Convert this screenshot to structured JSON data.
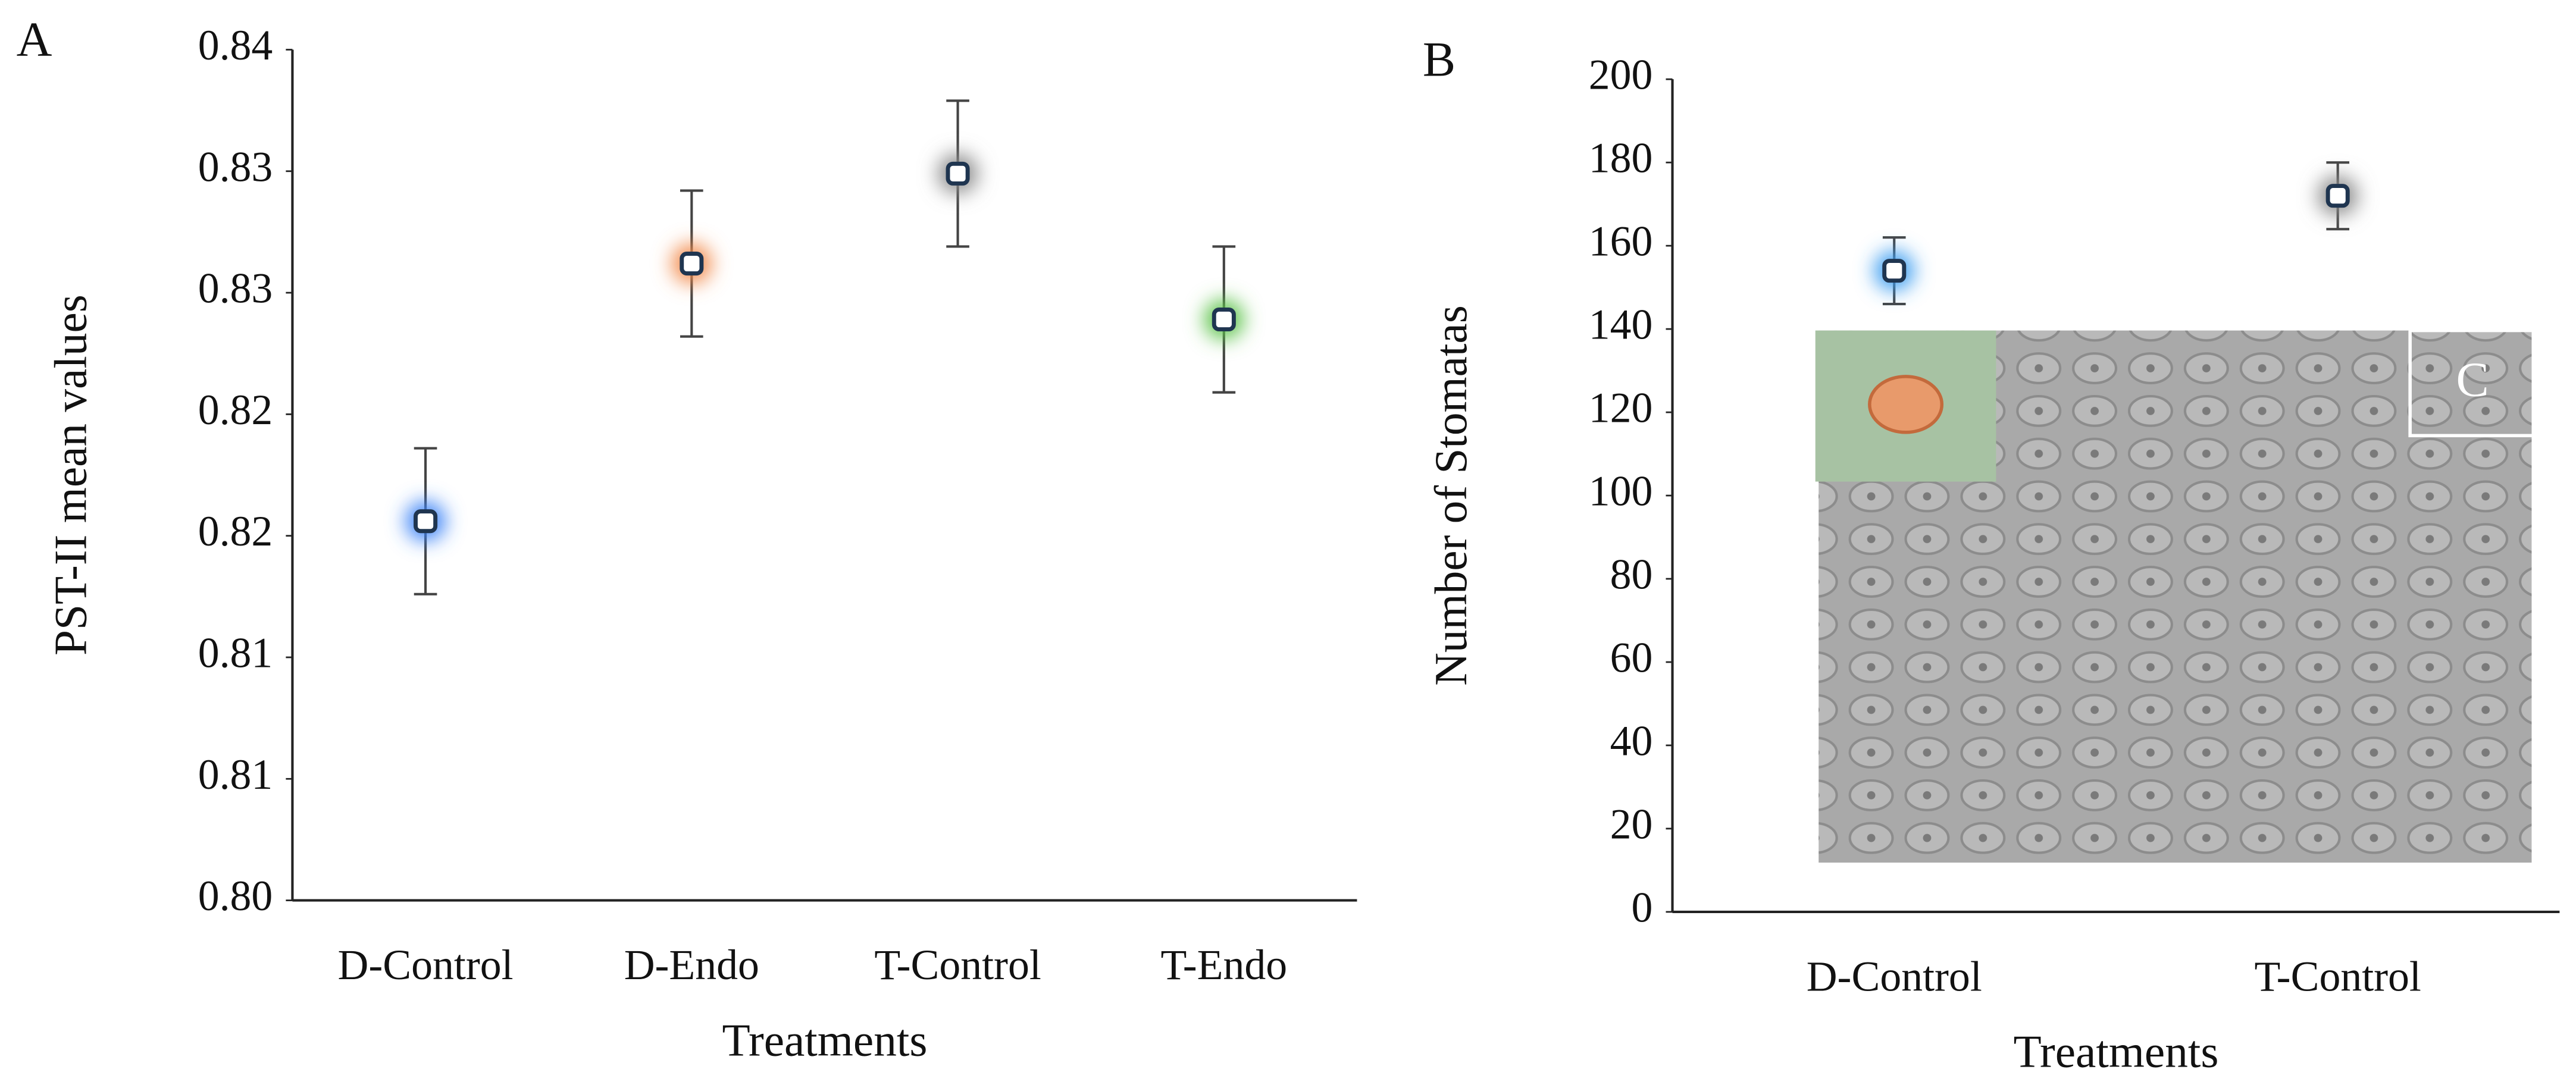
{
  "chart_data": [
    {
      "type": "scatter",
      "label": "A",
      "y_label": "PST-II mean values",
      "x_label": "Treatments",
      "categories": [
        "D-Control",
        "D-Endo",
        "T-Control",
        "T-Endo"
      ],
      "values": [
        0.8206,
        0.8312,
        0.8349,
        0.8289
      ],
      "errors": [
        0.003,
        0.003,
        0.003,
        0.003
      ],
      "colors": [
        "#3b82f6",
        "#f28a4b",
        "#8a8a8a",
        "#5cc24a"
      ],
      "ylim": [
        0.805,
        0.84
      ],
      "yticks": [
        {
          "value": 0.805,
          "label": "0.80"
        },
        {
          "value": 0.81,
          "label": "0.81"
        },
        {
          "value": 0.815,
          "label": "0.81"
        },
        {
          "value": 0.82,
          "label": "0.82"
        },
        {
          "value": 0.825,
          "label": "0.82"
        },
        {
          "value": 0.83,
          "label": "0.83"
        },
        {
          "value": 0.835,
          "label": "0.83"
        },
        {
          "value": 0.84,
          "label": "0.84"
        }
      ]
    },
    {
      "type": "scatter",
      "label": "B",
      "y_label": "Number of Stomatas",
      "x_label": "Treatments",
      "categories": [
        "D-Control",
        "T-Control"
      ],
      "values": [
        154,
        172
      ],
      "errors": [
        8,
        8
      ],
      "colors": [
        "#3b9cf0",
        "#8a8a8a"
      ],
      "ylim": [
        0,
        200
      ],
      "yticks": [
        0,
        20,
        40,
        60,
        80,
        100,
        120,
        140,
        160,
        180,
        200
      ],
      "annotation": "C"
    }
  ]
}
